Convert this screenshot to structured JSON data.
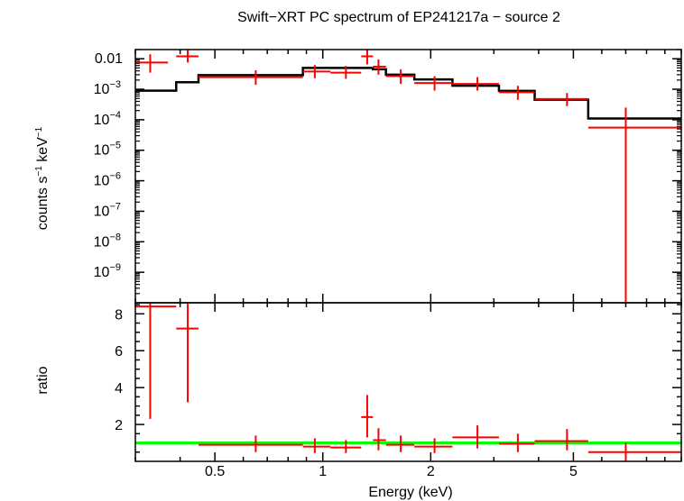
{
  "chart_data": {
    "type": "scatter",
    "title": "Swift−XRT PC spectrum of EP241217a − source 2",
    "xlabel": "Energy (keV)",
    "x_scale": "log",
    "xlim": [
      0.3,
      10
    ],
    "x_ticks": [
      {
        "value": 0.5,
        "label": "0.5"
      },
      {
        "value": 1,
        "label": "1"
      },
      {
        "value": 2,
        "label": "2"
      },
      {
        "value": 5,
        "label": "5"
      }
    ],
    "panels": [
      {
        "id": "spectrum",
        "ylabel_parts": [
          "counts s",
          "−1",
          " keV",
          "−1"
        ],
        "y_scale": "log",
        "ylim": [
          1e-10,
          0.02
        ],
        "y_ticks": [
          {
            "value": 0.01,
            "base": "0.01",
            "exp": ""
          },
          {
            "value": 0.001,
            "base": "10",
            "exp": "−3"
          },
          {
            "value": 0.0001,
            "base": "10",
            "exp": "−4"
          },
          {
            "value": 1e-05,
            "base": "10",
            "exp": "−5"
          },
          {
            "value": 1e-06,
            "base": "10",
            "exp": "−6"
          },
          {
            "value": 1e-07,
            "base": "10",
            "exp": "−7"
          },
          {
            "value": 1e-08,
            "base": "10",
            "exp": "−8"
          },
          {
            "value": 1e-09,
            "base": "10",
            "exp": "−9"
          }
        ],
        "data": [
          {
            "x": 0.33,
            "x_lo": 0.3,
            "x_hi": 0.37,
            "y": 0.0075,
            "y_lo": 0.0035,
            "y_hi": 0.014
          },
          {
            "x": 0.42,
            "x_lo": 0.39,
            "x_hi": 0.45,
            "y": 0.012,
            "y_lo": 0.0075,
            "y_hi": 0.02
          },
          {
            "x": 0.65,
            "x_lo": 0.45,
            "x_hi": 0.88,
            "y": 0.0025,
            "y_lo": 0.0014,
            "y_hi": 0.0042
          },
          {
            "x": 0.95,
            "x_lo": 0.88,
            "x_hi": 1.05,
            "y": 0.0038,
            "y_lo": 0.0023,
            "y_hi": 0.0062
          },
          {
            "x": 1.16,
            "x_lo": 1.05,
            "x_hi": 1.28,
            "y": 0.0035,
            "y_lo": 0.0022,
            "y_hi": 0.0058
          },
          {
            "x": 1.33,
            "x_lo": 1.28,
            "x_hi": 1.38,
            "y": 0.012,
            "y_lo": 0.0065,
            "y_hi": 0.02
          },
          {
            "x": 1.43,
            "x_lo": 1.38,
            "x_hi": 1.5,
            "y": 0.0055,
            "y_lo": 0.003,
            "y_hi": 0.0095
          },
          {
            "x": 1.65,
            "x_lo": 1.5,
            "x_hi": 1.8,
            "y": 0.0027,
            "y_lo": 0.0015,
            "y_hi": 0.0045
          },
          {
            "x": 2.05,
            "x_lo": 1.8,
            "x_hi": 2.3,
            "y": 0.0016,
            "y_lo": 0.0009,
            "y_hi": 0.0027
          },
          {
            "x": 2.7,
            "x_lo": 2.3,
            "x_hi": 3.1,
            "y": 0.0015,
            "y_lo": 0.0009,
            "y_hi": 0.0025
          },
          {
            "x": 3.5,
            "x_lo": 3.1,
            "x_hi": 3.9,
            "y": 0.0008,
            "y_lo": 0.00045,
            "y_hi": 0.0013
          },
          {
            "x": 4.8,
            "x_lo": 3.9,
            "x_hi": 5.5,
            "y": 0.00048,
            "y_lo": 0.00028,
            "y_hi": 0.00075
          },
          {
            "x": 7.0,
            "x_lo": 5.5,
            "x_hi": 10,
            "y": 5.5e-05,
            "y_lo": 1e-10,
            "y_hi": 0.00025
          }
        ],
        "model_step": [
          {
            "x_lo": 0.3,
            "x_hi": 0.39,
            "y": 0.0009
          },
          {
            "x_lo": 0.39,
            "x_hi": 0.45,
            "y": 0.0017
          },
          {
            "x_lo": 0.45,
            "x_hi": 0.88,
            "y": 0.0029
          },
          {
            "x_lo": 0.88,
            "x_hi": 1.38,
            "y": 0.005
          },
          {
            "x_lo": 1.38,
            "x_hi": 1.5,
            "y": 0.0045
          },
          {
            "x_lo": 1.5,
            "x_hi": 1.8,
            "y": 0.003
          },
          {
            "x_lo": 1.8,
            "x_hi": 2.3,
            "y": 0.0021
          },
          {
            "x_lo": 2.3,
            "x_hi": 3.1,
            "y": 0.0013
          },
          {
            "x_lo": 3.1,
            "x_hi": 3.9,
            "y": 0.00088
          },
          {
            "x_lo": 3.9,
            "x_hi": 5.5,
            "y": 0.00045
          },
          {
            "x_lo": 5.5,
            "x_hi": 10,
            "y": 0.00011
          }
        ]
      },
      {
        "id": "ratio",
        "ylabel": "ratio",
        "y_scale": "linear",
        "ylim": [
          0,
          8.6
        ],
        "y_ticks": [
          {
            "value": 2,
            "label": "2"
          },
          {
            "value": 4,
            "label": "4"
          },
          {
            "value": 6,
            "label": "6"
          },
          {
            "value": 8,
            "label": "8"
          }
        ],
        "reference_line": 1,
        "data": [
          {
            "x": 0.33,
            "x_lo": 0.3,
            "x_hi": 0.39,
            "y": 8.4,
            "y_lo": 2.3,
            "y_hi": 8.6
          },
          {
            "x": 0.42,
            "x_lo": 0.39,
            "x_hi": 0.45,
            "y": 7.2,
            "y_lo": 3.2,
            "y_hi": 8.6
          },
          {
            "x": 0.65,
            "x_lo": 0.45,
            "x_hi": 0.88,
            "y": 0.9,
            "y_lo": 0.5,
            "y_hi": 1.4
          },
          {
            "x": 0.95,
            "x_lo": 0.88,
            "x_hi": 1.05,
            "y": 0.8,
            "y_lo": 0.45,
            "y_hi": 1.25
          },
          {
            "x": 1.16,
            "x_lo": 1.05,
            "x_hi": 1.28,
            "y": 0.75,
            "y_lo": 0.45,
            "y_hi": 1.15
          },
          {
            "x": 1.33,
            "x_lo": 1.28,
            "x_hi": 1.38,
            "y": 2.4,
            "y_lo": 1.3,
            "y_hi": 3.6
          },
          {
            "x": 1.43,
            "x_lo": 1.38,
            "x_hi": 1.5,
            "y": 1.15,
            "y_lo": 0.6,
            "y_hi": 1.8
          },
          {
            "x": 1.65,
            "x_lo": 1.5,
            "x_hi": 1.8,
            "y": 0.9,
            "y_lo": 0.5,
            "y_hi": 1.4
          },
          {
            "x": 2.05,
            "x_lo": 1.8,
            "x_hi": 2.3,
            "y": 0.8,
            "y_lo": 0.45,
            "y_hi": 1.25
          },
          {
            "x": 2.7,
            "x_lo": 2.3,
            "x_hi": 3.1,
            "y": 1.3,
            "y_lo": 0.7,
            "y_hi": 1.95
          },
          {
            "x": 3.5,
            "x_lo": 3.1,
            "x_hi": 3.9,
            "y": 0.95,
            "y_lo": 0.5,
            "y_hi": 1.5
          },
          {
            "x": 4.8,
            "x_lo": 3.9,
            "x_hi": 5.5,
            "y": 1.1,
            "y_lo": 0.6,
            "y_hi": 1.75
          },
          {
            "x": 7.0,
            "x_lo": 5.5,
            "x_hi": 10,
            "y": 0.5,
            "y_lo": 0.0,
            "y_hi": 1.0
          }
        ]
      }
    ],
    "colors": {
      "data": "#ff0000",
      "model": "#000000",
      "reference_line": "#00ff00"
    },
    "grid": false,
    "legend": "none"
  }
}
